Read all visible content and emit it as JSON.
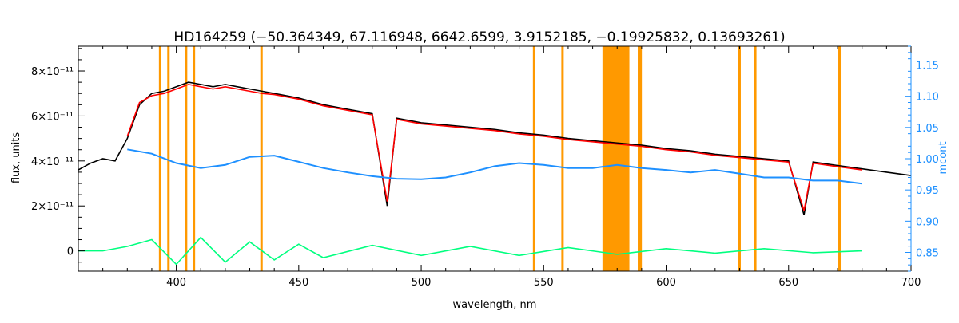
{
  "chart_data": {
    "type": "line",
    "title": "HD164259   (−50.364349, 67.116948, 6642.6599, 3.9152185, −0.19925832, 0.13693261)",
    "xlabel": "wavelength, nm",
    "ylabel": "flux, units",
    "y2label": "mcont",
    "xlim": [
      360,
      700
    ],
    "ylim": [
      -9e-12,
      9.1e-11
    ],
    "y2lim": [
      0.82,
      1.18
    ],
    "x_ticks": [
      "400",
      "450",
      "500",
      "550",
      "600",
      "650",
      "700"
    ],
    "y_ticks": [
      {
        "v": 0,
        "label": "0"
      },
      {
        "v": 2e-11,
        "label": "2×10⁻¹¹"
      },
      {
        "v": 4e-11,
        "label": "4×10⁻¹¹"
      },
      {
        "v": 6e-11,
        "label": "6×10⁻¹¹"
      },
      {
        "v": 8e-11,
        "label": "8×10⁻¹¹"
      }
    ],
    "y2_ticks": [
      "0.85",
      "0.90",
      "0.95",
      "1.00",
      "1.05",
      "1.10",
      "1.15"
    ],
    "masked_lines_nm": [
      393.4,
      396.8,
      404.0,
      407.2,
      434.8,
      546.1,
      557.7,
      588.9,
      589.6,
      630.0,
      636.4,
      670.8
    ],
    "masked_bands_nm": [
      [
        574.0,
        585.0
      ]
    ],
    "series": [
      {
        "color": "#000000",
        "x": [
          360,
          365,
          370,
          375,
          380,
          385,
          390,
          395,
          400,
          405,
          410,
          415,
          420,
          425,
          430,
          435,
          440,
          450,
          460,
          470,
          480,
          486.1,
          490,
          500,
          510,
          520,
          530,
          540,
          550,
          560,
          570,
          580,
          590,
          600,
          610,
          620,
          630,
          640,
          650,
          656.3,
          660,
          670,
          680,
          690,
          700
        ],
        "y": [
          3.6e-11,
          3.9e-11,
          4.1e-11,
          4e-11,
          5e-11,
          6.5e-11,
          7e-11,
          7.1e-11,
          7.3e-11,
          7.5e-11,
          7.4e-11,
          7.3e-11,
          7.4e-11,
          7.3e-11,
          7.2e-11,
          7.1e-11,
          7e-11,
          6.8e-11,
          6.5e-11,
          6.3e-11,
          6.1e-11,
          2e-11,
          5.9e-11,
          5.7e-11,
          5.6e-11,
          5.5e-11,
          5.4e-11,
          5.25e-11,
          5.15e-11,
          5e-11,
          4.9e-11,
          4.8e-11,
          4.7e-11,
          4.55e-11,
          4.45e-11,
          4.3e-11,
          4.2e-11,
          4.1e-11,
          4e-11,
          1.6e-11,
          3.95e-11,
          3.8e-11,
          3.65e-11,
          3.5e-11,
          3.35e-11
        ]
      },
      {
        "color": "#ff0000",
        "x": [
          380,
          385,
          390,
          395,
          400,
          405,
          410,
          415,
          420,
          425,
          430,
          435,
          440,
          450,
          460,
          470,
          480,
          486.1,
          490,
          500,
          510,
          520,
          530,
          540,
          550,
          560,
          570,
          580,
          590,
          600,
          610,
          620,
          630,
          640,
          650,
          656.3,
          660,
          670,
          680
        ],
        "y": [
          5.1e-11,
          6.6e-11,
          6.9e-11,
          7e-11,
          7.2e-11,
          7.4e-11,
          7.3e-11,
          7.2e-11,
          7.3e-11,
          7.2e-11,
          7.1e-11,
          7e-11,
          6.95e-11,
          6.75e-11,
          6.45e-11,
          6.25e-11,
          6.05e-11,
          2.2e-11,
          5.85e-11,
          5.65e-11,
          5.55e-11,
          5.45e-11,
          5.35e-11,
          5.2e-11,
          5.1e-11,
          4.95e-11,
          4.85e-11,
          4.75e-11,
          4.65e-11,
          4.5e-11,
          4.4e-11,
          4.25e-11,
          4.15e-11,
          4.05e-11,
          3.95e-11,
          1.8e-11,
          3.9e-11,
          3.75e-11,
          3.6e-11
        ]
      },
      {
        "color": "#00ff7f",
        "x": [
          360,
          370,
          380,
          390,
          400,
          410,
          420,
          430,
          440,
          450,
          460,
          480,
          500,
          520,
          540,
          560,
          580,
          600,
          620,
          640,
          660,
          680
        ],
        "y": [
          0,
          0,
          2e-12,
          5e-12,
          -6e-12,
          6e-12,
          -5e-12,
          4e-12,
          -4e-12,
          3e-12,
          -3e-12,
          2.5e-12,
          -2e-12,
          2e-12,
          -2e-12,
          1.5e-12,
          -1.5e-12,
          1e-12,
          -1e-12,
          1e-12,
          -8e-13,
          0
        ]
      },
      {
        "color": "#1e90ff",
        "axis": "right",
        "x": [
          380,
          390,
          400,
          410,
          420,
          430,
          440,
          450,
          460,
          470,
          480,
          490,
          500,
          510,
          520,
          530,
          540,
          550,
          560,
          570,
          580,
          590,
          600,
          610,
          620,
          630,
          640,
          650,
          660,
          670,
          680
        ],
        "y": [
          1.015,
          1.008,
          0.993,
          0.985,
          0.99,
          1.003,
          1.005,
          0.995,
          0.985,
          0.978,
          0.972,
          0.968,
          0.967,
          0.97,
          0.978,
          0.988,
          0.993,
          0.99,
          0.985,
          0.985,
          0.99,
          0.985,
          0.982,
          0.978,
          0.982,
          0.976,
          0.97,
          0.97,
          0.965,
          0.965,
          0.96
        ]
      }
    ]
  }
}
